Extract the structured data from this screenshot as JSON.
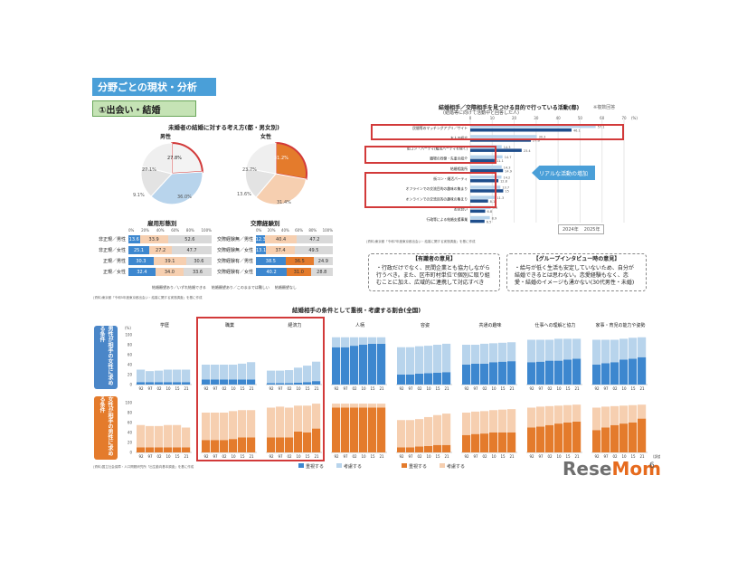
{
  "header": {
    "title": "分野ごとの現状・分析",
    "subtitle": "①出会い・結婚"
  },
  "pies": {
    "title": "未婚者の結婚に対する考え方(都・男女別)",
    "male": {
      "label": "男性",
      "s1": "結婚願望あり/いずれ結婚できる",
      "v1": "27.8%",
      "s2": "結婚願望なし/\n相にしたくなくても難しい",
      "v2": "27.1%",
      "s3": "結婚願望なし/結婚しない",
      "v3": "9.1%",
      "s4": "結婚願望あり/このままでは難しい",
      "v4": "36.0%"
    },
    "female": {
      "label": "女性",
      "s1": "結婚願望あり/いずれ結婚できる",
      "v1": "31.2%",
      "s2": "結婚願望なし/相にしたくなくても難しい",
      "v2": "23.7%",
      "s3": "結婚願望なし/結婚しない",
      "v3": "13.6%",
      "s4": "結婚願望あり/このままでは難しい",
      "v4": "31.4%"
    }
  },
  "employment": {
    "title": "雇用形態別",
    "ticks": [
      "0%",
      "20%",
      "40%",
      "60%",
      "80%",
      "100%"
    ],
    "rows": [
      {
        "label": "非正規／男性",
        "a": "13.6",
        "b": "33.9",
        "c": "52.6",
        "fa": 0.136,
        "fb": 0.339
      },
      {
        "label": "非正規／女性",
        "a": "25.1",
        "b": "27.2",
        "c": "47.7",
        "fa": 0.251,
        "fb": 0.272
      },
      {
        "label": "正規／男性",
        "a": "30.3",
        "b": "39.1",
        "c": "30.6",
        "fa": 0.303,
        "fb": 0.391
      },
      {
        "label": "正規／女性",
        "a": "32.4",
        "b": "34.0",
        "c": "33.6",
        "fa": 0.324,
        "fb": 0.34
      }
    ]
  },
  "relation": {
    "title": "交際経験別",
    "ticks": [
      "0%",
      "20%",
      "40%",
      "60%",
      "80%",
      "100%"
    ],
    "rows": [
      {
        "label": "交際経験無／男性",
        "a": "12.3",
        "b": "40.4",
        "c": "47.2",
        "fa": 0.123,
        "fb": 0.404
      },
      {
        "label": "交際経験無／女性",
        "a": "13.1",
        "b": "37.4",
        "c": "49.5",
        "fa": 0.131,
        "fb": 0.374
      },
      {
        "label": "交際経験有／男性",
        "a": "38.5",
        "b": "36.5",
        "c": "24.9",
        "fa": 0.385,
        "fb": 0.365
      },
      {
        "label": "交際経験有／女性",
        "a": "40.2",
        "b": "31.0",
        "c": "28.8",
        "fa": 0.402,
        "fb": 0.31
      }
    ],
    "legend": [
      "結婚願望あり／いずれ結婚できる",
      "結婚願望あり／このままでは難しい",
      "結婚願望なし"
    ]
  },
  "source_left": "(資料)東京都「令和5年度東京都出会い・結婚に関する実態調査」を基に作成",
  "activity": {
    "title": "結婚相手／交際相手を見つける目的で行っている活動(都)",
    "subtitle": "(結婚等に向けて活動中と回答した人)",
    "note": "※複数回答",
    "ticks": [
      "0",
      "10",
      "20",
      "30",
      "40",
      "50",
      "60",
      "70"
    ],
    "unit": "(%)",
    "items": [
      {
        "label": "民間等のマッチングアプリ／サイト",
        "v24": 57.1,
        "v25": 46.1
      },
      {
        "label": "友人の紹介",
        "v24": 30.3,
        "v25": 27.6
      },
      {
        "label": "街コン・パーティ(婚活パーティを除く)",
        "v24": 14.3,
        "v25": 23.4
      },
      {
        "label": "職場の同僚・先輩の紹介",
        "v24": 14.7,
        "v25": 11.1
      },
      {
        "label": "結婚相談所",
        "v24": 14.3,
        "v25": 14.9
      },
      {
        "label": "街コン・婚活パーティ",
        "v24": 14.2,
        "v25": 12.8
      },
      {
        "label": "オフラインでの交流目的の趣味の集まり",
        "v24": 13.7,
        "v25": 15.0
      },
      {
        "label": "オンラインでの交流目的の趣味の集まり",
        "v24": 11.3,
        "v25": 8.1
      },
      {
        "label": "お見合い",
        "v24": 9.3,
        "v25": 6.8
      },
      {
        "label": "行政等による結婚支援事業",
        "v24": 8.9,
        "v25": 6.5
      }
    ],
    "callout": "リアルな活動の増加",
    "legend": [
      "2024年",
      "2025年"
    ],
    "source": "(資料)東京都「令和7年度東京都出会い・結婚に関する実態調査」を基に作成"
  },
  "opinions": {
    "expert_title": "【有識者の意見】",
    "expert_text": "・行政だけでなく、民間企業とも協力しながら行うべき。また、区市町村単位で個別に取り組むことに加え、広域的に連携して対応すべき",
    "group_title": "【グループインタビュー時の意見】",
    "group_text": "・給与が低く生活も安定していないため、自分が結婚できるとは思わない。恋愛経験もなく、恋愛・結婚のイメージも湧かない(30代男性・未婚)"
  },
  "conditions": {
    "title": "結婚相手の条件として重視・考慮する割合(全国)",
    "unit": "(%)",
    "row_male": "男性が相手の女性に求める条件",
    "row_female": "女性が相手の男性に求める条件",
    "categories": [
      "学歴",
      "職業",
      "経済力",
      "人柄",
      "容姿",
      "共通の趣味",
      "仕事への理解と協力",
      "家事・育児の能力や姿勢"
    ],
    "years": [
      "92",
      "97",
      "02",
      "10",
      "15",
      "21"
    ],
    "yticks": [
      "0",
      "20",
      "40",
      "60",
      "80",
      "100"
    ],
    "year_caption": "(調査年)",
    "legend_male": [
      "重視する",
      "考慮する"
    ],
    "legend_female": [
      "重視する",
      "考慮する"
    ],
    "source": "(資料)国立社会保障・人口問題研究所「出生動向基本調査」を基に作成",
    "male_data": [
      [
        [
          5,
          25
        ],
        [
          5,
          22
        ],
        [
          5,
          23
        ],
        [
          5,
          25
        ],
        [
          5,
          25
        ],
        [
          5,
          25
        ]
      ],
      [
        [
          10,
          30
        ],
        [
          10,
          30
        ],
        [
          10,
          30
        ],
        [
          10,
          30
        ],
        [
          10,
          32
        ],
        [
          10,
          35
        ]
      ],
      [
        [
          3,
          25
        ],
        [
          3,
          25
        ],
        [
          3,
          26
        ],
        [
          4,
          30
        ],
        [
          5,
          33
        ],
        [
          7,
          39
        ]
      ],
      [
        [
          75,
          20
        ],
        [
          75,
          20
        ],
        [
          78,
          17
        ],
        [
          80,
          15
        ],
        [
          82,
          13
        ],
        [
          82,
          13
        ]
      ],
      [
        [
          20,
          55
        ],
        [
          20,
          55
        ],
        [
          22,
          55
        ],
        [
          23,
          55
        ],
        [
          24,
          56
        ],
        [
          25,
          57
        ]
      ],
      [
        [
          40,
          40
        ],
        [
          42,
          38
        ],
        [
          42,
          40
        ],
        [
          45,
          38
        ],
        [
          46,
          38
        ],
        [
          47,
          38
        ]
      ],
      [
        [
          45,
          45
        ],
        [
          46,
          44
        ],
        [
          48,
          42
        ],
        [
          48,
          44
        ],
        [
          50,
          42
        ],
        [
          52,
          40
        ]
      ],
      [
        [
          40,
          50
        ],
        [
          43,
          47
        ],
        [
          45,
          45
        ],
        [
          50,
          42
        ],
        [
          52,
          42
        ],
        [
          55,
          40
        ]
      ]
    ],
    "female_data": [
      [
        [
          10,
          45
        ],
        [
          10,
          43
        ],
        [
          10,
          43
        ],
        [
          10,
          45
        ],
        [
          10,
          45
        ],
        [
          10,
          40
        ]
      ],
      [
        [
          25,
          55
        ],
        [
          25,
          55
        ],
        [
          25,
          55
        ],
        [
          27,
          56
        ],
        [
          30,
          55
        ],
        [
          30,
          55
        ]
      ],
      [
        [
          30,
          60
        ],
        [
          30,
          62
        ],
        [
          30,
          60
        ],
        [
          42,
          52
        ],
        [
          40,
          54
        ],
        [
          48,
          50
        ]
      ],
      [
        [
          90,
          8
        ],
        [
          90,
          8
        ],
        [
          90,
          8
        ],
        [
          90,
          8
        ],
        [
          90,
          8
        ],
        [
          90,
          8
        ]
      ],
      [
        [
          10,
          55
        ],
        [
          10,
          55
        ],
        [
          12,
          55
        ],
        [
          13,
          58
        ],
        [
          15,
          60
        ],
        [
          15,
          63
        ]
      ],
      [
        [
          35,
          45
        ],
        [
          37,
          45
        ],
        [
          38,
          45
        ],
        [
          40,
          45
        ],
        [
          40,
          46
        ],
        [
          40,
          47
        ]
      ],
      [
        [
          50,
          40
        ],
        [
          52,
          40
        ],
        [
          55,
          38
        ],
        [
          58,
          36
        ],
        [
          60,
          35
        ],
        [
          62,
          34
        ]
      ],
      [
        [
          45,
          45
        ],
        [
          50,
          42
        ],
        [
          55,
          38
        ],
        [
          58,
          36
        ],
        [
          60,
          35
        ],
        [
          68,
          28
        ]
      ]
    ]
  },
  "logo": {
    "a": "Rese",
    "b": "Mom"
  },
  "page_num": "6",
  "colors": {
    "blue_dark": "#3d87cf",
    "blue_light": "#b8d4ec",
    "orange_dark": "#e47b2c",
    "orange_light": "#f6cfb0",
    "red": "#d23a3a",
    "accent": "#4a9fd8"
  }
}
